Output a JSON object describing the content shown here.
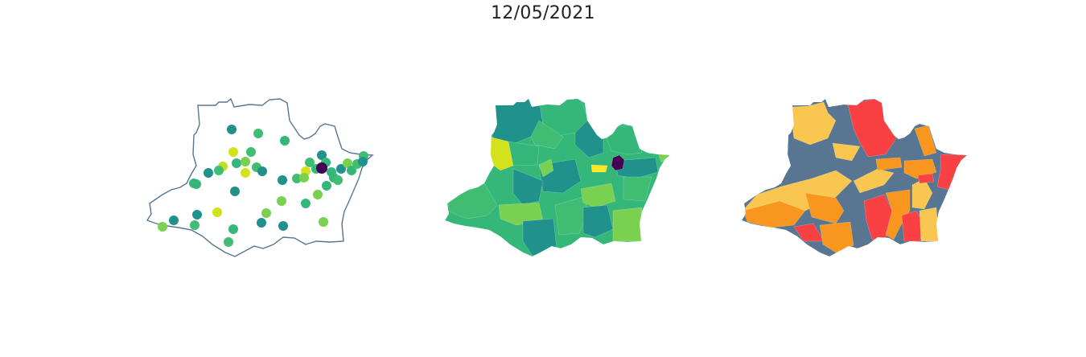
{
  "title": "12/05/2021",
  "palette": {
    "viridis_purple": "#440154",
    "teal": "#21918c",
    "green": "#35b779",
    "mint": "#40bd72",
    "lime": "#7ad151",
    "yellowgreen": "#bddf26",
    "yellow": "#d2e21b",
    "bright_yellow": "#fde725",
    "risk_slate": "#587592",
    "risk_yellow": "#f9c74f",
    "risk_orange": "#f8961e",
    "risk_red": "#f94144",
    "outline": "#587592"
  },
  "panels": [
    {
      "id": "points",
      "kind": "proportional-points-map"
    },
    {
      "id": "choropleth",
      "kind": "choropleth-map",
      "scale": "viridis"
    },
    {
      "id": "risk",
      "kind": "categorical-choropleth-map",
      "scale": "risk-levels"
    }
  ]
}
